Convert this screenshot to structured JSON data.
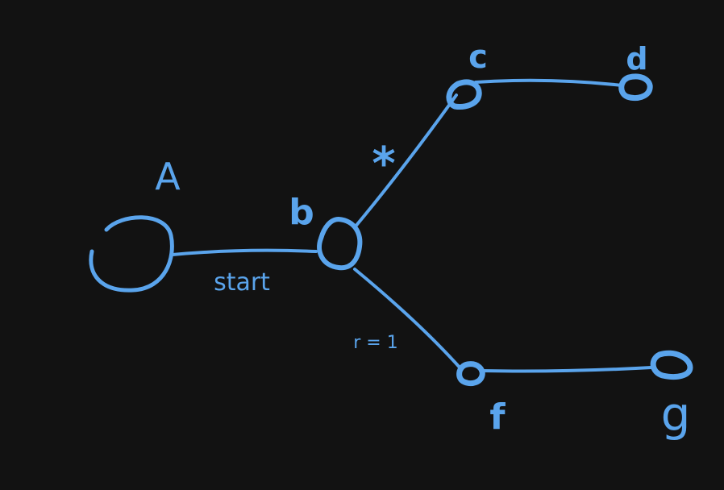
{
  "diagram": {
    "accent_color": "#5aa4ec",
    "background_color": "#121212",
    "nodes": [
      {
        "id": "A",
        "label": "A"
      },
      {
        "id": "b",
        "label": "b"
      },
      {
        "id": "c",
        "label": "c"
      },
      {
        "id": "d",
        "label": "d"
      },
      {
        "id": "f",
        "label": "f"
      },
      {
        "id": "g",
        "label": "g"
      }
    ],
    "edges": [
      {
        "from": "A",
        "to": "b",
        "label": "start"
      },
      {
        "from": "b",
        "to": "c",
        "label": "*"
      },
      {
        "from": "c",
        "to": "d",
        "label": ""
      },
      {
        "from": "b",
        "to": "f",
        "label": "r = 1"
      },
      {
        "from": "f",
        "to": "g",
        "label": ""
      }
    ]
  }
}
